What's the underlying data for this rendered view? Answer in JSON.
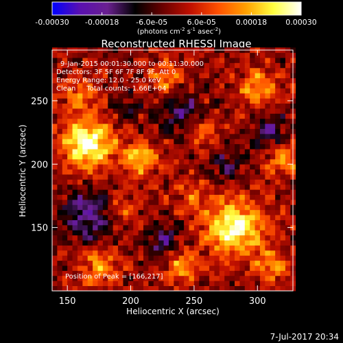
{
  "colorbar": {
    "ticks": [
      {
        "value": -0.0003,
        "label": "-0.00030"
      },
      {
        "value": -0.00018,
        "label": "-0.00018"
      },
      {
        "value": -6e-05,
        "label": "-6.0e-05"
      },
      {
        "value": 6e-05,
        "label": "6.0e-05"
      },
      {
        "value": 0.00018,
        "label": "0.00018"
      },
      {
        "value": 0.0003,
        "label": "0.00030"
      }
    ],
    "range": [
      -0.0003,
      0.0003
    ],
    "stops": [
      "#0000ff",
      "#5a10b0",
      "#6a2090",
      "#000000",
      "#6a0000",
      "#c01000",
      "#ff5000",
      "#ffa000",
      "#ffff40",
      "#ffffff"
    ],
    "unit_parts": {
      "open": "(photons cm",
      "exp1": "-2",
      "mid1": " s",
      "exp2": "-1",
      "mid2": " asec",
      "exp3": "-2",
      "close": ")"
    }
  },
  "chart_data": {
    "type": "heatmap",
    "title": "Reconstructed RHESSI Image",
    "xlabel": "Heliocentric X (arcsec)",
    "ylabel": "Heliocentric Y (arcsec)",
    "xlim": [
      138,
      328
    ],
    "ylim": [
      100,
      290
    ],
    "xticks": [
      150,
      200,
      250,
      300
    ],
    "yticks": [
      150,
      200,
      250
    ],
    "grid": false,
    "annotations": [
      "9-Jan-2015 00:01:30.000 to 00:11:30.000",
      "Detectors: 3F 5F 6F 7F 8F 9F, Att 0",
      "Energy Range: 12.0 - 25.0 keV",
      "Clean     Total counts: 1.66E+04"
    ],
    "peak_label": "Position of Peak = [166,217]",
    "peak": [
      166,
      217
    ],
    "cell_arcsec": 4,
    "sources": [
      {
        "x": 166,
        "y": 217,
        "amp": 1.0,
        "r": 14
      },
      {
        "x": 282,
        "y": 150,
        "amp": 0.95,
        "r": 15
      },
      {
        "x": 208,
        "y": 205,
        "amp": 0.75,
        "r": 9
      },
      {
        "x": 300,
        "y": 260,
        "amp": 0.55,
        "r": 10
      },
      {
        "x": 228,
        "y": 268,
        "amp": 0.45,
        "r": 9
      },
      {
        "x": 160,
        "y": 255,
        "amp": 0.4,
        "r": 10
      },
      {
        "x": 175,
        "y": 120,
        "amp": 0.5,
        "r": 10
      },
      {
        "x": 240,
        "y": 120,
        "amp": 0.55,
        "r": 9
      },
      {
        "x": 310,
        "y": 120,
        "amp": 0.45,
        "r": 9
      },
      {
        "x": 320,
        "y": 205,
        "amp": 0.55,
        "r": 9
      },
      {
        "x": 258,
        "y": 225,
        "amp": 0.35,
        "r": 9
      },
      {
        "x": 250,
        "y": 175,
        "amp": 0.35,
        "r": 8
      },
      {
        "x": 195,
        "y": 165,
        "amp": 0.3,
        "r": 9
      }
    ],
    "sinks": [
      {
        "x": 165,
        "y": 160,
        "amp": 0.6,
        "r": 14
      },
      {
        "x": 225,
        "y": 140,
        "amp": 0.45,
        "r": 10
      },
      {
        "x": 240,
        "y": 240,
        "amp": 0.45,
        "r": 12
      },
      {
        "x": 310,
        "y": 225,
        "amp": 0.45,
        "r": 10
      },
      {
        "x": 275,
        "y": 200,
        "amp": 0.35,
        "r": 10
      },
      {
        "x": 195,
        "y": 245,
        "amp": 0.3,
        "r": 9
      }
    ]
  },
  "timestamp": "7-Jul-2017 20:34"
}
